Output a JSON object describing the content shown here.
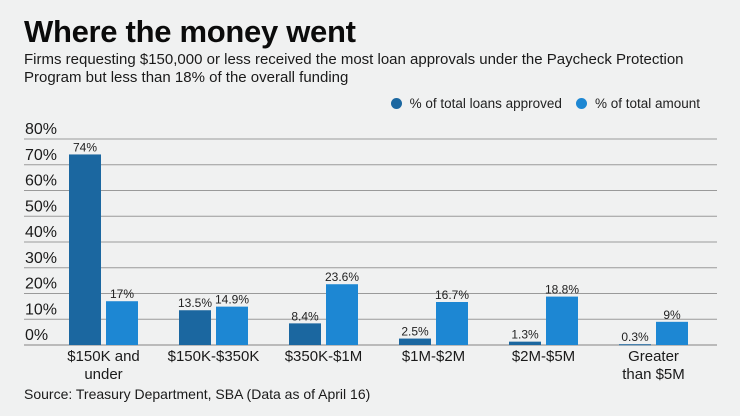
{
  "title": "Where the money went",
  "subtitle": "Firms requesting $150,000 or less received the most loan approvals under the Paycheck Protection Program but less than 18% of the overall funding",
  "source": "Source: Treasury Department, SBA (Data as of April 16)",
  "colors": {
    "loans": "#1b67a0",
    "amount": "#1d87d3",
    "grid": "#9a9a9a",
    "background": "#f0f1f1"
  },
  "chart_data": {
    "type": "bar",
    "title": "Where the money went",
    "xlabel": "",
    "ylabel": "",
    "ylim": [
      0,
      80
    ],
    "yticks": [
      0,
      10,
      20,
      30,
      40,
      50,
      60,
      70,
      80
    ],
    "ytick_labels": [
      "0%",
      "10%",
      "20%",
      "30%",
      "40%",
      "50%",
      "60%",
      "70%",
      "80%"
    ],
    "grid": true,
    "legend_position": "top-right",
    "categories": [
      [
        "$150K and",
        "under"
      ],
      [
        "$150K-$350K"
      ],
      [
        "$350K-$1M"
      ],
      [
        "$1M-$2M"
      ],
      [
        "$2M-$5M"
      ],
      [
        "Greater",
        "than $5M"
      ]
    ],
    "series": [
      {
        "name": "% of total loans approved",
        "values": [
          74,
          13.5,
          8.4,
          2.5,
          1.3,
          0.3
        ],
        "labels": [
          "74%",
          "13.5%",
          "8.4%",
          "2.5%",
          "1.3%",
          "0.3%"
        ]
      },
      {
        "name": "% of total amount",
        "values": [
          17,
          14.9,
          23.6,
          16.7,
          18.8,
          9
        ],
        "labels": [
          "17%",
          "14.9%",
          "23.6%",
          "16.7%",
          "18.8%",
          "9%"
        ]
      }
    ]
  }
}
